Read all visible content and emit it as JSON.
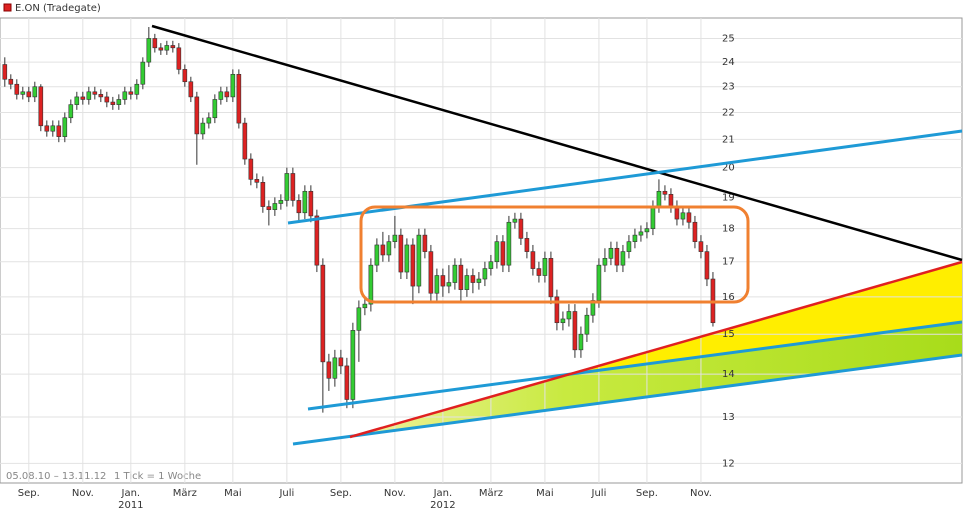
{
  "chart_data": {
    "type": "candlestick",
    "title": "E.ON (Tradegate)",
    "footnote": "05.08.10 – 13.11.12",
    "tick_note": "1 Tick = 1 Woche",
    "log_scale": true,
    "grid": true,
    "up_color": "#33cc33",
    "down_color": "#dd2222",
    "ylim": [
      11.6,
      25.9
    ],
    "yticks": [
      12,
      13,
      14,
      15,
      16,
      17,
      18,
      19,
      20,
      21,
      22,
      23,
      24,
      25
    ],
    "xlim": [
      -0.8,
      159.5
    ],
    "xticks": [
      {
        "value": 4,
        "label": "Sep."
      },
      {
        "value": 13,
        "label": "Nov."
      },
      {
        "value": 21,
        "label": "Jan."
      },
      {
        "value": 30,
        "label": "März"
      },
      {
        "value": 38,
        "label": "Mai"
      },
      {
        "value": 47,
        "label": "Juli"
      },
      {
        "value": 56,
        "label": "Sep."
      },
      {
        "value": 65,
        "label": "Nov."
      },
      {
        "value": 73,
        "label": "Jan."
      },
      {
        "value": 81,
        "label": "März"
      },
      {
        "value": 90,
        "label": "Mai"
      },
      {
        "value": 99,
        "label": "Juli"
      },
      {
        "value": 107,
        "label": "Sep."
      },
      {
        "value": 116,
        "label": "Nov."
      }
    ],
    "year_labels": [
      {
        "value": 21,
        "label": "2011"
      },
      {
        "value": 73,
        "label": "2012"
      }
    ],
    "open": [
      23.9,
      23.3,
      23.1,
      22.7,
      22.8,
      22.6,
      23.0,
      21.5,
      21.3,
      21.5,
      21.1,
      21.8,
      22.3,
      22.6,
      22.5,
      22.8,
      22.7,
      22.6,
      22.4,
      22.3,
      22.5,
      22.8,
      22.7,
      23.1,
      24.0,
      25.0,
      24.6,
      24.5,
      24.7,
      24.6,
      23.7,
      23.2,
      22.6,
      21.2,
      21.6,
      21.8,
      22.5,
      22.8,
      22.6,
      23.5,
      21.6,
      20.3,
      19.6,
      19.5,
      18.7,
      18.6,
      18.8,
      18.9,
      19.8,
      18.9,
      18.5,
      19.2,
      18.4,
      16.9,
      14.3,
      13.9,
      14.4,
      14.2,
      13.4,
      15.1,
      15.7,
      15.8,
      16.9,
      17.5,
      17.2,
      17.6,
      17.8,
      16.7,
      17.5,
      16.3,
      17.8,
      17.3,
      16.1,
      16.6,
      16.3,
      16.4,
      16.9,
      16.2,
      16.6,
      16.4,
      16.5,
      16.8,
      17.0,
      17.6,
      16.9,
      18.2,
      18.3,
      17.7,
      17.3,
      16.8,
      16.6,
      17.1,
      16.0,
      15.3,
      15.4,
      15.6,
      14.6,
      15.0,
      15.5,
      15.9,
      16.9,
      17.1,
      17.4,
      16.9,
      17.3,
      17.6,
      17.8,
      17.9,
      18.0,
      18.7,
      19.2,
      19.1,
      18.7,
      18.3,
      18.5,
      18.2,
      17.6,
      17.3,
      16.5
    ],
    "high": [
      24.2,
      23.5,
      23.3,
      23.0,
      23.0,
      23.2,
      23.1,
      21.7,
      21.7,
      21.7,
      22.0,
      22.5,
      22.8,
      22.8,
      23.0,
      23.0,
      22.9,
      22.8,
      22.6,
      22.7,
      23.0,
      23.0,
      23.3,
      24.2,
      25.5,
      25.2,
      24.8,
      24.9,
      24.9,
      24.8,
      23.9,
      23.4,
      22.8,
      21.8,
      22.0,
      22.7,
      23.0,
      23.0,
      23.7,
      23.7,
      21.8,
      20.5,
      19.8,
      19.7,
      18.9,
      19.0,
      19.1,
      20.0,
      20.0,
      19.1,
      19.4,
      19.4,
      18.6,
      17.1,
      14.5,
      14.6,
      14.6,
      14.4,
      15.3,
      15.9,
      16.0,
      17.1,
      17.7,
      17.9,
      17.8,
      18.4,
      18.0,
      17.7,
      17.7,
      18.0,
      18.0,
      17.5,
      16.8,
      16.8,
      16.9,
      17.1,
      17.1,
      16.8,
      16.8,
      16.7,
      17.0,
      17.2,
      17.8,
      17.8,
      18.4,
      18.5,
      18.5,
      17.9,
      17.5,
      17.0,
      17.3,
      17.3,
      16.2,
      15.6,
      15.8,
      15.8,
      15.2,
      15.7,
      16.1,
      17.1,
      17.4,
      17.6,
      17.6,
      17.5,
      17.8,
      18.0,
      18.1,
      18.2,
      18.9,
      19.6,
      19.4,
      19.3,
      18.9,
      18.7,
      18.7,
      18.4,
      17.8,
      17.5,
      16.7
    ],
    "low": [
      23.0,
      22.9,
      22.5,
      22.5,
      22.4,
      22.4,
      21.3,
      21.1,
      21.1,
      20.9,
      20.9,
      21.6,
      22.1,
      22.3,
      22.3,
      22.5,
      22.4,
      22.2,
      22.1,
      22.1,
      22.3,
      22.5,
      22.5,
      22.9,
      23.8,
      24.4,
      24.3,
      24.3,
      24.4,
      23.5,
      23.0,
      22.4,
      20.1,
      21.0,
      21.4,
      21.6,
      22.3,
      22.4,
      22.4,
      21.4,
      20.1,
      19.4,
      19.3,
      18.5,
      18.1,
      18.4,
      18.6,
      18.7,
      18.7,
      18.2,
      18.3,
      18.2,
      16.7,
      13.1,
      13.6,
      13.7,
      14.0,
      13.2,
      13.2,
      14.3,
      15.5,
      15.6,
      16.7,
      17.0,
      17.0,
      17.4,
      16.5,
      16.5,
      15.8,
      16.1,
      17.1,
      15.9,
      15.9,
      16.0,
      16.1,
      16.2,
      15.9,
      16.0,
      16.1,
      16.2,
      16.3,
      16.6,
      16.8,
      16.7,
      16.7,
      18.0,
      17.5,
      17.1,
      16.6,
      16.4,
      16.4,
      15.8,
      15.1,
      15.1,
      15.2,
      14.4,
      14.4,
      14.8,
      15.3,
      15.7,
      16.7,
      16.9,
      16.7,
      16.7,
      17.1,
      17.4,
      17.6,
      17.7,
      17.8,
      18.5,
      18.9,
      18.5,
      18.1,
      18.1,
      18.0,
      17.4,
      17.1,
      16.3,
      15.2
    ],
    "close": [
      23.3,
      23.1,
      22.7,
      22.8,
      22.6,
      23.0,
      21.5,
      21.3,
      21.5,
      21.1,
      21.8,
      22.3,
      22.6,
      22.5,
      22.8,
      22.7,
      22.6,
      22.4,
      22.3,
      22.5,
      22.8,
      22.7,
      23.1,
      24.0,
      25.0,
      24.6,
      24.5,
      24.7,
      24.6,
      23.7,
      23.2,
      22.6,
      21.2,
      21.6,
      21.8,
      22.5,
      22.8,
      22.6,
      23.5,
      21.6,
      20.3,
      19.6,
      19.5,
      18.7,
      18.6,
      18.8,
      18.9,
      19.8,
      18.9,
      18.5,
      19.2,
      18.4,
      16.9,
      14.3,
      13.9,
      14.4,
      14.2,
      13.4,
      15.1,
      15.7,
      15.8,
      16.9,
      17.5,
      17.2,
      17.6,
      17.8,
      16.7,
      17.5,
      16.3,
      17.8,
      17.3,
      16.1,
      16.6,
      16.3,
      16.4,
      16.9,
      16.2,
      16.6,
      16.4,
      16.5,
      16.8,
      17.0,
      17.6,
      16.9,
      18.2,
      18.3,
      17.7,
      17.3,
      16.8,
      16.6,
      17.1,
      16.0,
      15.3,
      15.4,
      15.6,
      14.6,
      15.0,
      15.5,
      15.9,
      16.9,
      17.1,
      17.4,
      16.9,
      17.3,
      17.6,
      17.8,
      17.9,
      18.0,
      18.7,
      19.2,
      19.1,
      18.7,
      18.3,
      18.5,
      18.2,
      17.6,
      17.3,
      16.5,
      15.3
    ]
  }
}
